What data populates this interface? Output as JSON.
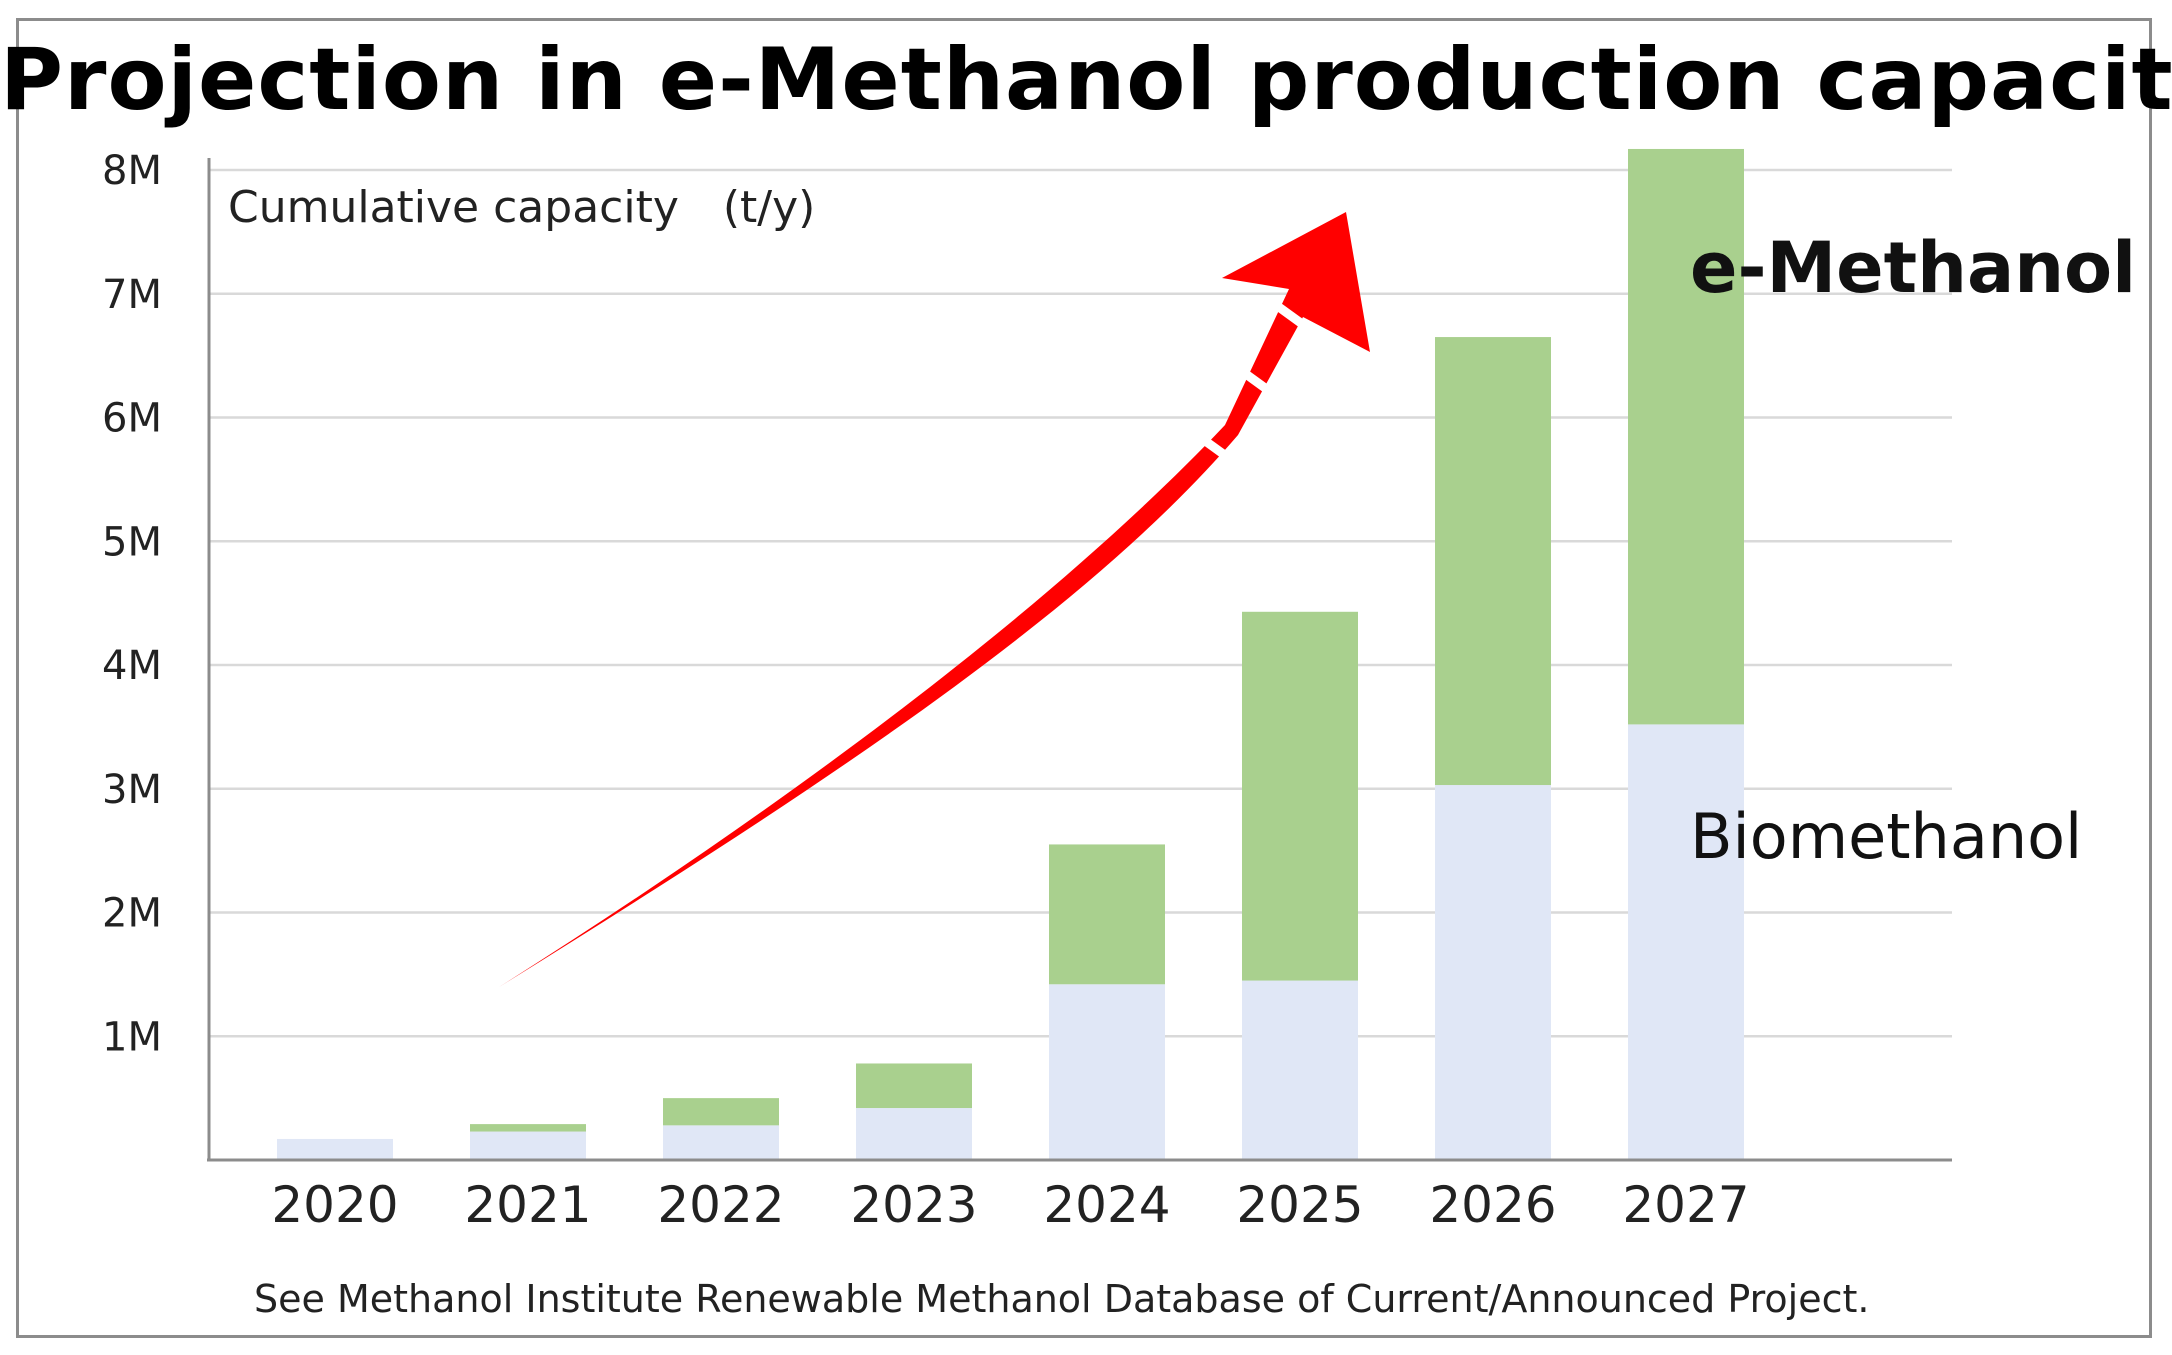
{
  "chart_data": {
    "type": "bar",
    "stacked": true,
    "title": "Projection in e-Methanol production capacity",
    "ylabel": "Cumulative capacity　(t/y)",
    "xlabel": "",
    "categories": [
      "2020",
      "2021",
      "2022",
      "2023",
      "2024",
      "2025",
      "2026",
      "2027"
    ],
    "ylim": [
      0,
      8000000
    ],
    "yticks": [
      {
        "value": 1000000,
        "label": "1M"
      },
      {
        "value": 2000000,
        "label": "2M"
      },
      {
        "value": 3000000,
        "label": "3M"
      },
      {
        "value": 4000000,
        "label": "4M"
      },
      {
        "value": 5000000,
        "label": "5M"
      },
      {
        "value": 6000000,
        "label": "6M"
      },
      {
        "value": 7000000,
        "label": "7M"
      },
      {
        "value": 8000000,
        "label": "8M"
      }
    ],
    "grid": true,
    "series": [
      {
        "name": "Biomethanol",
        "color": "#e0e7f6",
        "values": [
          170000,
          230000,
          280000,
          420000,
          1420000,
          1450000,
          3030000,
          3520000
        ]
      },
      {
        "name": "e-Methanol",
        "color": "#a9d08e",
        "values": [
          0,
          60000,
          220000,
          360000,
          1130000,
          2980000,
          3620000,
          4650000
        ]
      }
    ],
    "annotations": [
      {
        "text": "e-Methanol",
        "kind": "series-label"
      },
      {
        "text": "Biomethanol",
        "kind": "series-label"
      },
      {
        "text": "",
        "kind": "growth-arrow",
        "color": "#ff0000"
      }
    ],
    "footnote": "See Methanol Institute  Renewable Methanol Database of Current/Announced  Project."
  }
}
